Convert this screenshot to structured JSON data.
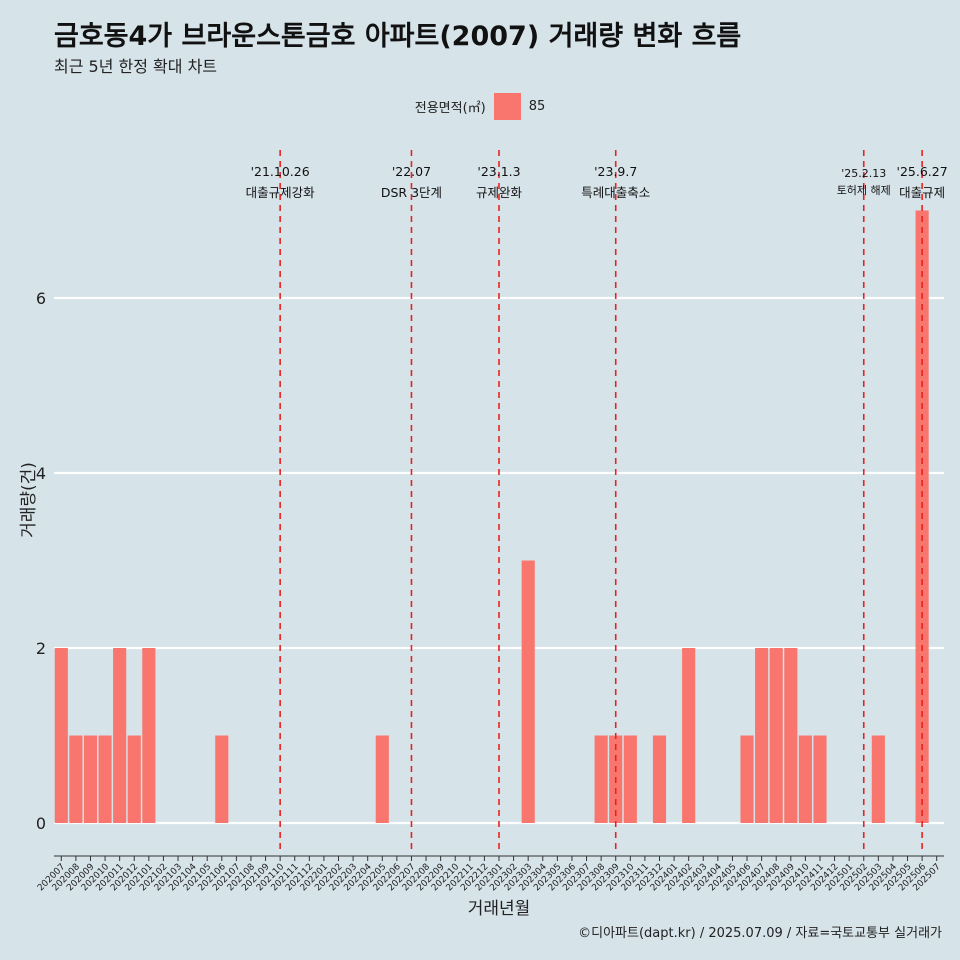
{
  "title": "금호동4가 브라운스톤금호 아파트(2007) 거래량 변화 흐름",
  "subtitle": "최근 5년 한정 확대 차트",
  "caption": "©디아파트(dapt.kr) / 2025.07.09 / 자료=국토교통부 실거래가",
  "legend": {
    "title": "전용면적(㎡)",
    "item": "85"
  },
  "colors": {
    "bar": "#f8766d",
    "background": "#d6e3e9",
    "grid": "#ffffff",
    "event_line": "#e8231f"
  },
  "chart_data": {
    "type": "bar",
    "xlabel": "거래년월",
    "ylabel": "거래량(건)",
    "ylim": [
      0,
      7
    ],
    "yticks": [
      0,
      2,
      4,
      6
    ],
    "grid": "horizontal major lines",
    "legend_position": "top",
    "series": [
      {
        "name": "85"
      }
    ],
    "categories": [
      "202007",
      "202008",
      "202009",
      "202010",
      "202011",
      "202012",
      "202101",
      "202102",
      "202103",
      "202104",
      "202105",
      "202106",
      "202107",
      "202108",
      "202109",
      "202110",
      "202111",
      "202112",
      "202201",
      "202202",
      "202203",
      "202204",
      "202205",
      "202206",
      "202207",
      "202208",
      "202209",
      "202210",
      "202211",
      "202212",
      "202301",
      "202302",
      "202303",
      "202304",
      "202305",
      "202306",
      "202307",
      "202308",
      "202309",
      "202310",
      "202311",
      "202312",
      "202401",
      "202402",
      "202403",
      "202404",
      "202405",
      "202406",
      "202407",
      "202408",
      "202409",
      "202410",
      "202411",
      "202412",
      "202501",
      "202502",
      "202503",
      "202504",
      "202505",
      "202506",
      "202507"
    ],
    "values": [
      2,
      1,
      1,
      1,
      2,
      1,
      2,
      0,
      0,
      0,
      0,
      1,
      0,
      0,
      0,
      0,
      0,
      0,
      0,
      0,
      0,
      0,
      1,
      0,
      0,
      0,
      0,
      0,
      0,
      0,
      0,
      0,
      3,
      0,
      0,
      0,
      0,
      1,
      1,
      1,
      0,
      1,
      0,
      2,
      0,
      0,
      0,
      1,
      2,
      2,
      2,
      1,
      1,
      0,
      0,
      0,
      1,
      0,
      0,
      7,
      0
    ],
    "events": [
      {
        "date": "'21.10.26",
        "label": "대출규제강화",
        "at": "202110"
      },
      {
        "date": "'22.07",
        "label": "DSR 3단계",
        "at": "202207"
      },
      {
        "date": "'23.1.3",
        "label": "규제완화",
        "at": "202301"
      },
      {
        "date": "'23.9.7",
        "label": "특례대출축소",
        "at": "202309"
      },
      {
        "date": "'25.2.13",
        "label": "토허제 해제",
        "at": "202502"
      },
      {
        "date": "'25.6.27",
        "label": "대출규제",
        "at": "202506"
      }
    ]
  }
}
